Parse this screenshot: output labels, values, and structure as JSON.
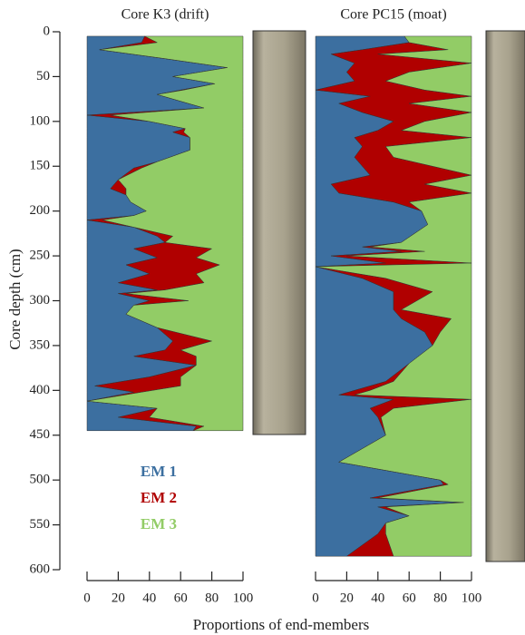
{
  "chart_data": {
    "type": "area",
    "ylabel": "Core depth (cm)",
    "xlabel": "Proportions of end-members",
    "ylim": [
      0,
      600
    ],
    "yticks": [
      0,
      50,
      100,
      150,
      200,
      250,
      300,
      350,
      400,
      450,
      500,
      550,
      600
    ],
    "xlim": [
      0,
      100
    ],
    "xticks": [
      0,
      20,
      40,
      60,
      80,
      100
    ],
    "legend": [
      {
        "name": "EM 1",
        "color": "#3c6fa0"
      },
      {
        "name": "EM 2",
        "color": "#b00000"
      },
      {
        "name": "EM 3",
        "color": "#92cc66"
      }
    ],
    "panels": [
      {
        "title": "Core K3 (drift)",
        "depths": [
          5,
          12,
          20,
          30,
          40,
          50,
          58,
          65,
          70,
          85,
          93,
          100,
          108,
          112,
          118,
          132,
          145,
          152,
          165,
          175,
          182,
          190,
          200,
          205,
          210,
          218,
          228,
          235,
          242,
          252,
          260,
          270,
          280,
          288,
          292,
          300,
          305,
          315,
          330,
          345,
          355,
          362,
          372,
          385,
          395,
          402,
          412,
          420,
          430,
          440,
          445
        ],
        "values": [
          [
            37,
            35,
            8,
            50,
            90,
            55,
            82,
            60,
            45,
            75,
            0,
            40,
            63,
            55,
            66,
            66,
            45,
            30,
            20,
            15,
            25,
            28,
            38,
            30,
            0,
            30,
            45,
            50,
            30,
            45,
            25,
            40,
            20,
            45,
            20,
            40,
            30,
            25,
            45,
            55,
            50,
            30,
            70,
            40,
            5,
            30,
            0,
            45,
            20,
            70,
            68
          ],
          [
            0,
            10,
            0,
            0,
            0,
            0,
            0,
            2,
            0,
            0,
            15,
            0,
            0,
            7,
            0,
            0,
            0,
            5,
            0,
            10,
            0,
            0,
            0,
            0,
            10,
            0,
            10,
            0,
            50,
            25,
            60,
            30,
            55,
            5,
            5,
            25,
            0,
            0,
            0,
            25,
            10,
            40,
            0,
            20,
            55,
            5,
            0,
            0,
            20,
            5,
            0
          ],
          [
            63,
            55,
            92,
            50,
            10,
            45,
            18,
            38,
            55,
            25,
            85,
            60,
            37,
            38,
            34,
            34,
            55,
            65,
            80,
            75,
            75,
            72,
            62,
            70,
            90,
            70,
            45,
            50,
            20,
            30,
            15,
            30,
            25,
            50,
            75,
            35,
            70,
            75,
            55,
            20,
            40,
            30,
            30,
            40,
            40,
            65,
            100,
            55,
            60,
            25,
            32
          ]
        ]
      },
      {
        "title": "Core PC15 (moat)",
        "depths": [
          5,
          12,
          20,
          25,
          35,
          45,
          55,
          65,
          72,
          80,
          90,
          100,
          110,
          118,
          128,
          140,
          160,
          170,
          180,
          190,
          200,
          215,
          235,
          240,
          245,
          250,
          258,
          262,
          275,
          290,
          310,
          320,
          335,
          350,
          370,
          390,
          400,
          405,
          410,
          420,
          430,
          450,
          480,
          500,
          505,
          520,
          525,
          530,
          540,
          548,
          560,
          585
        ],
        "values": [
          [
            57,
            60,
            30,
            10,
            25,
            20,
            25,
            0,
            35,
            15,
            30,
            50,
            40,
            25,
            30,
            25,
            35,
            10,
            15,
            50,
            68,
            72,
            55,
            30,
            55,
            10,
            45,
            0,
            30,
            50,
            50,
            55,
            70,
            75,
            60,
            45,
            25,
            15,
            50,
            35,
            40,
            45,
            15,
            80,
            82,
            35,
            95,
            40,
            60,
            45,
            40,
            20
          ],
          [
            0,
            0,
            55,
            30,
            75,
            40,
            20,
            70,
            65,
            45,
            70,
            20,
            15,
            75,
            15,
            25,
            65,
            60,
            85,
            10,
            0,
            0,
            0,
            5,
            15,
            10,
            55,
            0,
            15,
            25,
            5,
            32,
            10,
            0,
            0,
            5,
            10,
            10,
            50,
            15,
            2,
            0,
            0,
            0,
            3,
            5,
            0,
            5,
            0,
            0,
            5,
            30
          ],
          [
            43,
            40,
            15,
            60,
            0,
            40,
            55,
            30,
            0,
            40,
            0,
            30,
            45,
            0,
            55,
            50,
            0,
            30,
            0,
            40,
            32,
            28,
            45,
            65,
            30,
            80,
            0,
            100,
            55,
            25,
            45,
            13,
            20,
            25,
            40,
            50,
            65,
            75,
            0,
            50,
            58,
            55,
            85,
            20,
            15,
            60,
            5,
            55,
            40,
            55,
            55,
            50
          ]
        ]
      }
    ]
  }
}
